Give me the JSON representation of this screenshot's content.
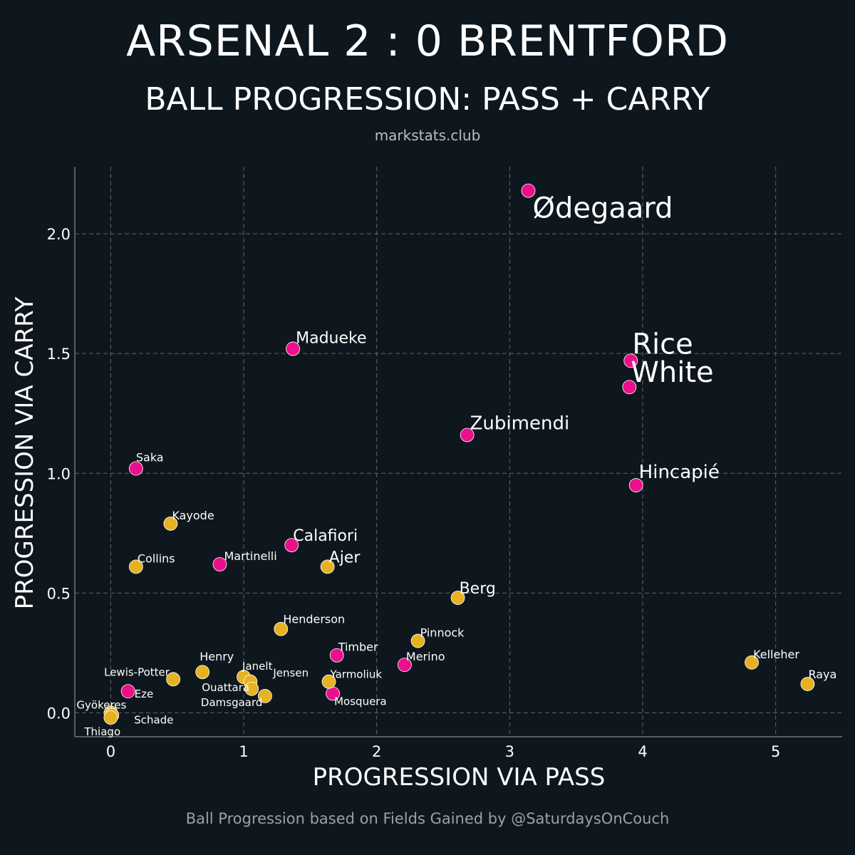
{
  "header": {
    "title": "ARSENAL 2 : 0 BRENTFORD",
    "subtitle": "BALL PROGRESSION: PASS + CARRY",
    "site": "markstats.club"
  },
  "footer": {
    "credit": "Ball Progression based on Fields Gained by @SaturdaysOnCouch"
  },
  "colors": {
    "background": "#0e171e",
    "arsenal": "#ec0f8c",
    "brentford": "#e6b222",
    "grid": "#5b6670"
  },
  "chart_data": {
    "type": "scatter",
    "xlabel": "PROGRESSION VIA PASS",
    "ylabel": "PROGRESSION VIA CARRY",
    "xlim": [
      -0.27,
      5.5
    ],
    "ylim": [
      -0.1,
      2.28
    ],
    "xticks": [
      0,
      1,
      2,
      3,
      4,
      5
    ],
    "xtick_labels": [
      "0",
      "1",
      "2",
      "3",
      "4",
      "5"
    ],
    "yticks": [
      0.0,
      0.5,
      1.0,
      1.5,
      2.0
    ],
    "ytick_labels": [
      "0.0",
      "0.5",
      "1.0",
      "1.5",
      "2.0"
    ],
    "grid": true,
    "series": [
      {
        "name": "Arsenal",
        "color": "#ec0f8c",
        "points": [
          {
            "name": "Ødegaard",
            "x": 3.14,
            "y": 2.18,
            "size": "xl"
          },
          {
            "name": "Madueke",
            "x": 1.37,
            "y": 1.52,
            "size": "m"
          },
          {
            "name": "Rice",
            "x": 3.91,
            "y": 1.47,
            "size": "xl"
          },
          {
            "name": "White",
            "x": 3.9,
            "y": 1.36,
            "size": "xl"
          },
          {
            "name": "Zubimendi",
            "x": 2.68,
            "y": 1.16,
            "size": "l"
          },
          {
            "name": "Saka",
            "x": 0.19,
            "y": 1.02,
            "size": "s"
          },
          {
            "name": "Hincapié",
            "x": 3.95,
            "y": 0.95,
            "size": "l"
          },
          {
            "name": "Calafiori",
            "x": 1.36,
            "y": 0.7,
            "size": "m"
          },
          {
            "name": "Martinelli",
            "x": 0.82,
            "y": 0.62,
            "size": "s"
          },
          {
            "name": "Timber",
            "x": 1.7,
            "y": 0.24,
            "size": "s"
          },
          {
            "name": "Merino",
            "x": 2.21,
            "y": 0.2,
            "size": "s"
          },
          {
            "name": "Mosquera",
            "x": 1.67,
            "y": 0.08,
            "size": "xs"
          },
          {
            "name": "Eze",
            "x": 0.13,
            "y": 0.09,
            "size": "xs"
          }
        ]
      },
      {
        "name": "Brentford",
        "color": "#e6b222",
        "points": [
          {
            "name": "Kayode",
            "x": 0.45,
            "y": 0.79,
            "size": "s"
          },
          {
            "name": "Collins",
            "x": 0.19,
            "y": 0.61,
            "size": "s"
          },
          {
            "name": "Ajer",
            "x": 1.63,
            "y": 0.61,
            "size": "m"
          },
          {
            "name": "Berg",
            "x": 2.61,
            "y": 0.48,
            "size": "m"
          },
          {
            "name": "Henderson",
            "x": 1.28,
            "y": 0.35,
            "size": "s"
          },
          {
            "name": "Pinnock",
            "x": 2.31,
            "y": 0.3,
            "size": "s"
          },
          {
            "name": "Kelleher",
            "x": 4.82,
            "y": 0.21,
            "size": "s"
          },
          {
            "name": "Raya",
            "x": 5.24,
            "y": 0.12,
            "size": "s"
          },
          {
            "name": "Henry",
            "x": 0.69,
            "y": 0.17,
            "size": "s"
          },
          {
            "name": "Janelt",
            "x": 1.0,
            "y": 0.15,
            "size": "xs"
          },
          {
            "name": "Lewis-Potter",
            "x": 0.47,
            "y": 0.14,
            "size": "xs"
          },
          {
            "name": "Yarmoliuk",
            "x": 1.64,
            "y": 0.13,
            "size": "xs"
          },
          {
            "name": "Jensen",
            "x": 1.05,
            "y": 0.13,
            "size": "xs"
          },
          {
            "name": "Ouattara",
            "x": 1.06,
            "y": 0.1,
            "size": "xs"
          },
          {
            "name": "Damsgaard",
            "x": 1.16,
            "y": 0.07,
            "size": "xs"
          },
          {
            "name": "Gyökeres",
            "x": 0.0,
            "y": 0.0,
            "size": "xs"
          },
          {
            "name": "Schade",
            "x": 0.01,
            "y": -0.01,
            "size": "xs"
          },
          {
            "name": "Thiago",
            "x": 0.0,
            "y": -0.02,
            "size": "xs"
          }
        ]
      }
    ]
  }
}
